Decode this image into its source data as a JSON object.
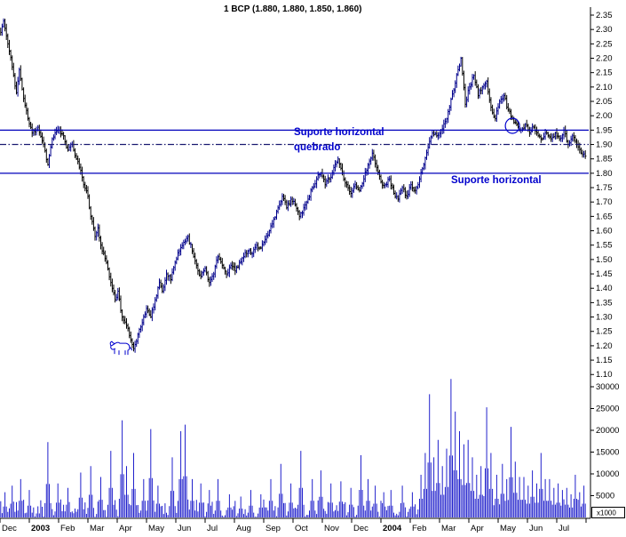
{
  "title": "1 BCP (1.880, 1.880, 1.850, 1.860)",
  "annotations": {
    "broken_support_line1": "Suporte horizontal",
    "broken_support_line2": "quebrado",
    "support_text": "Suporte horizontal",
    "circle": {
      "index": 358,
      "price": 1.965
    },
    "bull": {
      "index": 84,
      "price": 1.19
    }
  },
  "colors": {
    "accent_blue": "#0000cd",
    "support_line": "#0000bb",
    "volume": "#2121cc",
    "bar_down": "#000000",
    "bar_up": "#00008b",
    "axis": "#000000"
  },
  "chart_data": {
    "type": "candlestick",
    "title": "1 BCP (1.880, 1.880, 1.850, 1.860)",
    "symbol": "BCP",
    "last_quote": {
      "open": 1.88,
      "high": 1.88,
      "low": 1.85,
      "close": 1.86
    },
    "price_axis": {
      "ticks": [
        "2.35",
        "2.30",
        "2.25",
        "2.20",
        "2.15",
        "2.10",
        "2.05",
        "2.00",
        "1.95",
        "1.90",
        "1.85",
        "1.80",
        "1.75",
        "1.70",
        "1.65",
        "1.60",
        "1.55",
        "1.50",
        "1.45",
        "1.40",
        "1.35",
        "1.30",
        "1.25",
        "1.20",
        "1.15",
        "1.10"
      ],
      "ylim": [
        1.075,
        2.375
      ]
    },
    "volume_axis": {
      "ticks": [
        "30000",
        "25000",
        "20000",
        "15000",
        "10000",
        "5000"
      ],
      "unit": "x1000",
      "ylim": [
        0,
        30600
      ]
    },
    "x_labels": [
      "Dec",
      "2003",
      "Feb",
      "Mar",
      "Apr",
      "May",
      "Jun",
      "Jul",
      "Aug",
      "Sep",
      "Oct",
      "Nov",
      "Dec",
      "2004",
      "Feb",
      "Mar",
      "Apr",
      "May",
      "Jun",
      "Jul"
    ],
    "support_lines": [
      {
        "price": 1.95,
        "style": "solid",
        "label": "Suporte horizontal quebrado"
      },
      {
        "price": 1.9,
        "style": "dashdot",
        "label": ""
      },
      {
        "price": 1.8,
        "style": "solid",
        "label": "Suporte horizontal"
      }
    ],
    "bars_total": 410,
    "seed": 11,
    "keypoints": [
      [
        0,
        2.29
      ],
      [
        2,
        2.33
      ],
      [
        5,
        2.25
      ],
      [
        8,
        2.17
      ],
      [
        11,
        2.08
      ],
      [
        13,
        2.16
      ],
      [
        16,
        2.06
      ],
      [
        19,
        1.99
      ],
      [
        22,
        1.94
      ],
      [
        26,
        1.96
      ],
      [
        30,
        1.9
      ],
      [
        33,
        1.83
      ],
      [
        36,
        1.92
      ],
      [
        40,
        1.95
      ],
      [
        44,
        1.93
      ],
      [
        47,
        1.88
      ],
      [
        50,
        1.9
      ],
      [
        53,
        1.85
      ],
      [
        56,
        1.81
      ],
      [
        58,
        1.76
      ],
      [
        61,
        1.72
      ],
      [
        63,
        1.65
      ],
      [
        66,
        1.58
      ],
      [
        68,
        1.61
      ],
      [
        71,
        1.53
      ],
      [
        74,
        1.49
      ],
      [
        77,
        1.42
      ],
      [
        80,
        1.36
      ],
      [
        82,
        1.39
      ],
      [
        85,
        1.3
      ],
      [
        88,
        1.27
      ],
      [
        91,
        1.22
      ],
      [
        93,
        1.19
      ],
      [
        96,
        1.24
      ],
      [
        99,
        1.28
      ],
      [
        102,
        1.33
      ],
      [
        105,
        1.3
      ],
      [
        108,
        1.36
      ],
      [
        111,
        1.42
      ],
      [
        113,
        1.39
      ],
      [
        116,
        1.45
      ],
      [
        119,
        1.43
      ],
      [
        122,
        1.49
      ],
      [
        125,
        1.53
      ],
      [
        128,
        1.56
      ],
      [
        131,
        1.58
      ],
      [
        134,
        1.53
      ],
      [
        137,
        1.48
      ],
      [
        140,
        1.44
      ],
      [
        143,
        1.47
      ],
      [
        146,
        1.42
      ],
      [
        149,
        1.45
      ],
      [
        152,
        1.51
      ],
      [
        155,
        1.48
      ],
      [
        158,
        1.45
      ],
      [
        161,
        1.48
      ],
      [
        164,
        1.46
      ],
      [
        167,
        1.49
      ],
      [
        170,
        1.51
      ],
      [
        173,
        1.53
      ],
      [
        176,
        1.52
      ],
      [
        179,
        1.55
      ],
      [
        182,
        1.54
      ],
      [
        185,
        1.57
      ],
      [
        188,
        1.6
      ],
      [
        191,
        1.64
      ],
      [
        194,
        1.68
      ],
      [
        197,
        1.72
      ],
      [
        200,
        1.68
      ],
      [
        203,
        1.71
      ],
      [
        206,
        1.69
      ],
      [
        209,
        1.65
      ],
      [
        212,
        1.68
      ],
      [
        215,
        1.71
      ],
      [
        218,
        1.75
      ],
      [
        221,
        1.78
      ],
      [
        224,
        1.8
      ],
      [
        227,
        1.76
      ],
      [
        230,
        1.78
      ],
      [
        233,
        1.82
      ],
      [
        236,
        1.85
      ],
      [
        239,
        1.8
      ],
      [
        242,
        1.76
      ],
      [
        245,
        1.73
      ],
      [
        248,
        1.76
      ],
      [
        251,
        1.74
      ],
      [
        254,
        1.78
      ],
      [
        257,
        1.83
      ],
      [
        260,
        1.87
      ],
      [
        263,
        1.82
      ],
      [
        266,
        1.77
      ],
      [
        269,
        1.76
      ],
      [
        272,
        1.78
      ],
      [
        275,
        1.73
      ],
      [
        278,
        1.71
      ],
      [
        281,
        1.75
      ],
      [
        284,
        1.72
      ],
      [
        287,
        1.76
      ],
      [
        290,
        1.74
      ],
      [
        293,
        1.78
      ],
      [
        296,
        1.83
      ],
      [
        299,
        1.89
      ],
      [
        302,
        1.94
      ],
      [
        305,
        1.93
      ],
      [
        308,
        1.95
      ],
      [
        311,
        1.98
      ],
      [
        314,
        2.03
      ],
      [
        317,
        2.09
      ],
      [
        320,
        2.16
      ],
      [
        322,
        2.2
      ],
      [
        325,
        2.04
      ],
      [
        328,
        2.1
      ],
      [
        331,
        2.14
      ],
      [
        334,
        2.07
      ],
      [
        337,
        2.1
      ],
      [
        340,
        2.12
      ],
      [
        343,
        2.03
      ],
      [
        346,
        1.99
      ],
      [
        349,
        2.05
      ],
      [
        352,
        2.07
      ],
      [
        355,
        2.02
      ],
      [
        358,
        1.99
      ],
      [
        361,
        1.97
      ],
      [
        364,
        1.95
      ],
      [
        367,
        1.97
      ],
      [
        370,
        1.94
      ],
      [
        373,
        1.96
      ],
      [
        376,
        1.93
      ],
      [
        379,
        1.92
      ],
      [
        382,
        1.94
      ],
      [
        385,
        1.92
      ],
      [
        388,
        1.94
      ],
      [
        391,
        1.92
      ],
      [
        394,
        1.95
      ],
      [
        397,
        1.9
      ],
      [
        400,
        1.93
      ],
      [
        403,
        1.9
      ],
      [
        406,
        1.87
      ],
      [
        409,
        1.86
      ]
    ],
    "volume_spikes": [
      [
        3,
        6000
      ],
      [
        8,
        7500
      ],
      [
        14,
        9000
      ],
      [
        20,
        6500
      ],
      [
        33,
        17500
      ],
      [
        40,
        8000
      ],
      [
        47,
        7000
      ],
      [
        56,
        10500
      ],
      [
        63,
        12000
      ],
      [
        70,
        9500
      ],
      [
        77,
        15500
      ],
      [
        85,
        22500
      ],
      [
        88,
        12000
      ],
      [
        93,
        15000
      ],
      [
        100,
        9000
      ],
      [
        105,
        20500
      ],
      [
        110,
        7500
      ],
      [
        120,
        14000
      ],
      [
        126,
        20000
      ],
      [
        129,
        21500
      ],
      [
        134,
        9000
      ],
      [
        140,
        8000
      ],
      [
        146,
        6500
      ],
      [
        152,
        9000
      ],
      [
        160,
        5500
      ],
      [
        168,
        5000
      ],
      [
        175,
        6500
      ],
      [
        182,
        5500
      ],
      [
        189,
        9000
      ],
      [
        196,
        12500
      ],
      [
        203,
        8000
      ],
      [
        210,
        15500
      ],
      [
        218,
        9000
      ],
      [
        224,
        11000
      ],
      [
        231,
        8000
      ],
      [
        238,
        8500
      ],
      [
        245,
        7000
      ],
      [
        252,
        14500
      ],
      [
        257,
        9000
      ],
      [
        262,
        7500
      ],
      [
        268,
        6000
      ],
      [
        273,
        6500
      ],
      [
        281,
        7500
      ],
      [
        288,
        6000
      ],
      [
        294,
        10000
      ],
      [
        297,
        15000
      ],
      [
        300,
        28500
      ],
      [
        303,
        14000
      ],
      [
        306,
        18000
      ],
      [
        309,
        12000
      ],
      [
        312,
        16000
      ],
      [
        315,
        32000
      ],
      [
        318,
        24500
      ],
      [
        321,
        20000
      ],
      [
        324,
        17000
      ],
      [
        327,
        18000
      ],
      [
        330,
        14000
      ],
      [
        333,
        10000
      ],
      [
        336,
        12000
      ],
      [
        340,
        25500
      ],
      [
        343,
        15000
      ],
      [
        347,
        10000
      ],
      [
        351,
        12500
      ],
      [
        354,
        9000
      ],
      [
        357,
        21000
      ],
      [
        360,
        13000
      ],
      [
        363,
        9500
      ],
      [
        366,
        9500
      ],
      [
        369,
        7500
      ],
      [
        372,
        11000
      ],
      [
        375,
        8000
      ],
      [
        378,
        15000
      ],
      [
        381,
        9000
      ],
      [
        384,
        9000
      ],
      [
        387,
        7000
      ],
      [
        390,
        8000
      ],
      [
        393,
        6500
      ],
      [
        396,
        7000
      ],
      [
        399,
        5500
      ],
      [
        402,
        10000
      ],
      [
        405,
        6000
      ],
      [
        408,
        7500
      ]
    ]
  }
}
